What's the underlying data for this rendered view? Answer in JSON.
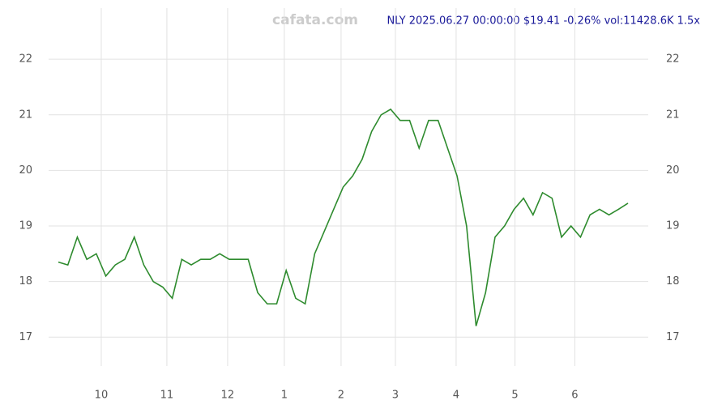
{
  "chart_data": {
    "type": "line",
    "title": "NLY 2025.06.27 00:00:00 $19.41 -0.26% vol:11428.6K 1.5x",
    "watermark": "cafata.com",
    "x": [
      0,
      1,
      2,
      3,
      4,
      5,
      6,
      7,
      8,
      9,
      10,
      11,
      12,
      13,
      14,
      15,
      16,
      17,
      18,
      19,
      20,
      21,
      22,
      23,
      24,
      25,
      26,
      27,
      28,
      29,
      30,
      31,
      32,
      33,
      34,
      35,
      36,
      37,
      38,
      39,
      40,
      41,
      42,
      43,
      44,
      45,
      46,
      47,
      48,
      49,
      50,
      51,
      52,
      53,
      54,
      55,
      56,
      57,
      58,
      59,
      60
    ],
    "values": [
      18.35,
      18.3,
      18.8,
      18.4,
      18.5,
      18.1,
      18.3,
      18.4,
      18.8,
      18.3,
      18.0,
      17.9,
      17.7,
      18.4,
      18.3,
      18.4,
      18.4,
      18.5,
      18.4,
      18.4,
      18.4,
      17.8,
      17.6,
      17.6,
      18.2,
      17.7,
      17.6,
      18.5,
      18.9,
      19.3,
      19.7,
      19.9,
      20.2,
      20.7,
      21.0,
      21.1,
      20.9,
      20.9,
      20.4,
      20.9,
      20.9,
      20.4,
      19.9,
      19.0,
      17.2,
      17.8,
      18.8,
      19.0,
      19.3,
      19.5,
      19.2,
      19.6,
      19.5,
      18.8,
      19.0,
      18.8,
      19.2,
      19.3,
      19.2,
      19.3,
      19.41
    ],
    "color": "#2e8b2e",
    "xlim": [
      0,
      60
    ],
    "xticks": [
      {
        "value": 4.52,
        "label": "10"
      },
      {
        "value": 11.43,
        "label": "11"
      },
      {
        "value": 17.83,
        "label": "12"
      },
      {
        "value": 23.8,
        "label": "1"
      },
      {
        "value": 29.78,
        "label": "2"
      },
      {
        "value": 35.5,
        "label": "3"
      },
      {
        "value": 41.9,
        "label": "4"
      },
      {
        "value": 48.1,
        "label": "5"
      },
      {
        "value": 54.4,
        "label": "6"
      }
    ],
    "ylim": [
      16.48,
      22.92
    ],
    "yticks": [
      17,
      18,
      19,
      20,
      21,
      22
    ],
    "grid": true
  }
}
